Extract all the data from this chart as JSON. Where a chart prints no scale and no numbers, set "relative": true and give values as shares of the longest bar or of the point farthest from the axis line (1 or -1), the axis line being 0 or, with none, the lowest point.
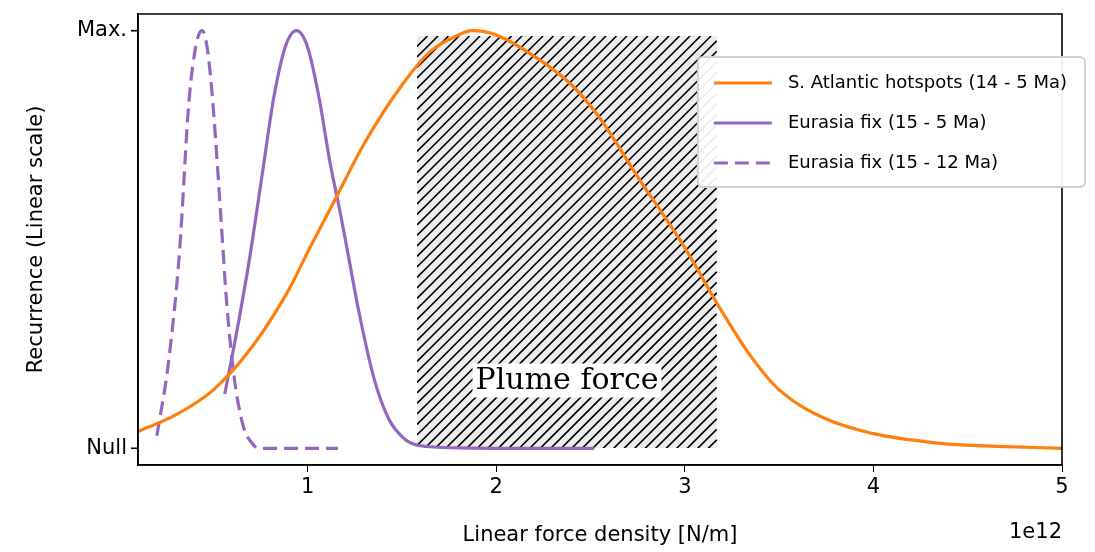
{
  "chart_data": {
    "type": "line",
    "xlabel": "Linear force density [N/m]",
    "ylabel": "Recurrence (Linear scale)",
    "xlim": [
      0.1,
      5
    ],
    "xticks": [
      1,
      2,
      3,
      4,
      5
    ],
    "relative": true,
    "grid": false,
    "legend": "top right",
    "marker": "none",
    "series": [
      {
        "name": "S. Atlantic hotspots (14 - 5 Ma)",
        "color": "#ff7f0e",
        "line_style": "solid",
        "x": [
          0.1,
          0.3,
          0.5,
          0.7,
          0.9,
          1.0,
          1.15,
          1.3,
          1.5,
          1.65,
          1.8,
          1.87,
          2.0,
          2.23,
          2.4,
          2.55,
          2.75,
          3.0,
          3.18,
          3.35,
          3.5,
          3.75,
          4.0,
          4.2,
          4.4,
          4.7,
          5.0
        ],
        "values": [
          0.04,
          0.08,
          0.14,
          0.24,
          0.38,
          0.47,
          0.6,
          0.73,
          0.87,
          0.95,
          0.99,
          1.0,
          0.99,
          0.93,
          0.87,
          0.79,
          0.65,
          0.48,
          0.34,
          0.22,
          0.14,
          0.07,
          0.035,
          0.02,
          0.01,
          0.004,
          0.0
        ]
      },
      {
        "name": "Eurasia fix (15 - 5 Ma)",
        "color": "#9467bd",
        "line_style": "solid",
        "x": [
          0.56,
          0.62,
          0.69,
          0.76,
          0.82,
          0.88,
          0.94,
          1.0,
          1.06,
          1.12,
          1.17,
          1.22,
          1.27,
          1.35,
          1.43,
          1.52,
          1.6,
          1.8,
          2.1,
          2.52
        ],
        "values": [
          0.13,
          0.27,
          0.45,
          0.66,
          0.84,
          0.96,
          1.0,
          0.96,
          0.84,
          0.68,
          0.57,
          0.45,
          0.33,
          0.17,
          0.07,
          0.02,
          0.006,
          0.001,
          0.0,
          0.0
        ]
      },
      {
        "name": "Eurasia fix (15 - 12 Ma)",
        "color": "#9467bd",
        "line_style": "dashed",
        "x": [
          0.2,
          0.26,
          0.32,
          0.37,
          0.41,
          0.44,
          0.47,
          0.5,
          0.54,
          0.57,
          0.61,
          0.66,
          0.7,
          0.74,
          0.85,
          1.16
        ],
        "values": [
          0.03,
          0.2,
          0.47,
          0.83,
          0.97,
          1.0,
          0.95,
          0.81,
          0.55,
          0.35,
          0.17,
          0.05,
          0.015,
          0.0,
          0.0,
          0.0
        ]
      }
    ],
    "bands": [
      {
        "axis": "x",
        "from": 1.58,
        "to": 3.17,
        "label": "Plume force",
        "color": "#000000"
      }
    ],
    "annotations": [
      "1e12",
      "Null",
      "Max."
    ]
  }
}
